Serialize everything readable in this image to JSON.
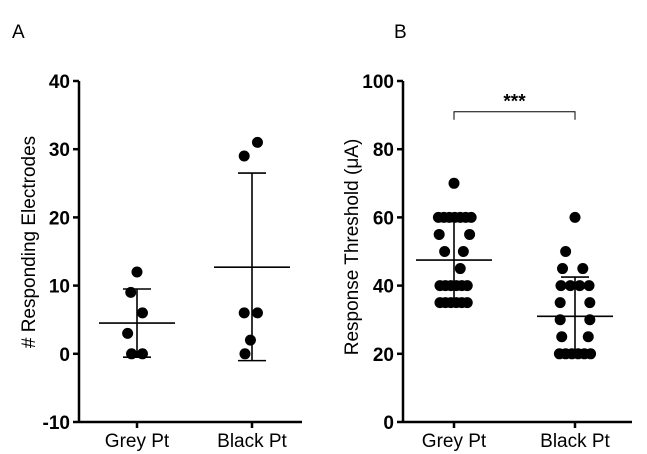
{
  "panels": [
    {
      "label": "A"
    },
    {
      "label": "B"
    }
  ],
  "chart_data": [
    {
      "type": "scatter",
      "panel": "A",
      "title": "",
      "xlabel": "",
      "ylabel": "# Responding Electrodes",
      "ylim": [
        -10,
        40
      ],
      "yticks": [
        -10,
        0,
        10,
        20,
        30,
        40
      ],
      "ytick_labels": [
        "-10",
        "0",
        "10",
        "20",
        "30",
        "40"
      ],
      "categories": [
        "Grey Pt",
        "Black Pt"
      ],
      "grid": false,
      "series": [
        {
          "category": "Grey Pt",
          "points": [
            {
              "x": 0.0,
              "y": 12
            },
            {
              "x": -0.08,
              "y": 9
            },
            {
              "x": 0.07,
              "y": 6
            },
            {
              "x": -0.12,
              "y": 3
            },
            {
              "x": -0.07,
              "y": 0
            },
            {
              "x": 0.07,
              "y": 0
            }
          ],
          "mean": 4.5,
          "sd_low": -0.5,
          "sd_high": 9.5
        },
        {
          "category": "Black Pt",
          "points": [
            {
              "x": -0.1,
              "y": 29
            },
            {
              "x": 0.07,
              "y": 31
            },
            {
              "x": -0.1,
              "y": 6
            },
            {
              "x": 0.07,
              "y": 6
            },
            {
              "x": -0.02,
              "y": 2
            },
            {
              "x": -0.09,
              "y": 0
            }
          ],
          "mean": 12.7,
          "sd_low": -1,
          "sd_high": 26.5
        }
      ],
      "colors": {
        "points": "#000000",
        "axis": "#000000"
      }
    },
    {
      "type": "scatter",
      "panel": "B",
      "title": "",
      "xlabel": "",
      "ylabel": "Response Threshold (μA)",
      "ylim": [
        0,
        100
      ],
      "yticks": [
        0,
        20,
        40,
        60,
        80,
        100
      ],
      "ytick_labels": [
        "0",
        "20",
        "40",
        "60",
        "80",
        "100"
      ],
      "categories": [
        "Grey Pt",
        "Black Pt"
      ],
      "grid": false,
      "significance": {
        "label": "***",
        "between": [
          "Grey Pt",
          "Black Pt"
        ],
        "y": 91
      },
      "series": [
        {
          "category": "Grey Pt",
          "points": [
            {
              "x": 0.0,
              "y": 70
            },
            {
              "x": -0.2,
              "y": 60
            },
            {
              "x": -0.13,
              "y": 60
            },
            {
              "x": -0.06,
              "y": 60
            },
            {
              "x": 0.01,
              "y": 60
            },
            {
              "x": 0.08,
              "y": 60
            },
            {
              "x": 0.15,
              "y": 60
            },
            {
              "x": 0.22,
              "y": 60
            },
            {
              "x": -0.19,
              "y": 55
            },
            {
              "x": 0.2,
              "y": 55
            },
            {
              "x": -0.12,
              "y": 50
            },
            {
              "x": 0.12,
              "y": 50
            },
            {
              "x": 0.08,
              "y": 45
            },
            {
              "x": -0.18,
              "y": 40
            },
            {
              "x": -0.11,
              "y": 40
            },
            {
              "x": -0.04,
              "y": 40
            },
            {
              "x": 0.03,
              "y": 40
            },
            {
              "x": 0.1,
              "y": 40
            },
            {
              "x": 0.17,
              "y": 40
            },
            {
              "x": -0.18,
              "y": 35
            },
            {
              "x": -0.11,
              "y": 35
            },
            {
              "x": -0.04,
              "y": 35
            },
            {
              "x": 0.03,
              "y": 35
            },
            {
              "x": 0.1,
              "y": 35
            },
            {
              "x": 0.17,
              "y": 35
            }
          ],
          "mean": 47.5,
          "sd_low": 35.5,
          "sd_high": 59.5
        },
        {
          "category": "Black Pt",
          "points": [
            {
              "x": 0.0,
              "y": 60
            },
            {
              "x": -0.12,
              "y": 50
            },
            {
              "x": -0.16,
              "y": 45
            },
            {
              "x": 0.1,
              "y": 45
            },
            {
              "x": -0.18,
              "y": 40
            },
            {
              "x": -0.06,
              "y": 40
            },
            {
              "x": 0.06,
              "y": 40
            },
            {
              "x": 0.18,
              "y": 40
            },
            {
              "x": -0.19,
              "y": 35
            },
            {
              "x": 0.19,
              "y": 35
            },
            {
              "x": -0.19,
              "y": 30
            },
            {
              "x": 0.19,
              "y": 30
            },
            {
              "x": -0.17,
              "y": 25
            },
            {
              "x": 0.17,
              "y": 25
            },
            {
              "x": -0.2,
              "y": 20
            },
            {
              "x": -0.12,
              "y": 20
            },
            {
              "x": -0.04,
              "y": 20
            },
            {
              "x": 0.04,
              "y": 20
            },
            {
              "x": 0.12,
              "y": 20
            },
            {
              "x": 0.2,
              "y": 20
            }
          ],
          "mean": 31,
          "sd_low": 20.5,
          "sd_high": 42.5
        }
      ],
      "colors": {
        "points": "#000000",
        "axis": "#000000"
      }
    }
  ]
}
